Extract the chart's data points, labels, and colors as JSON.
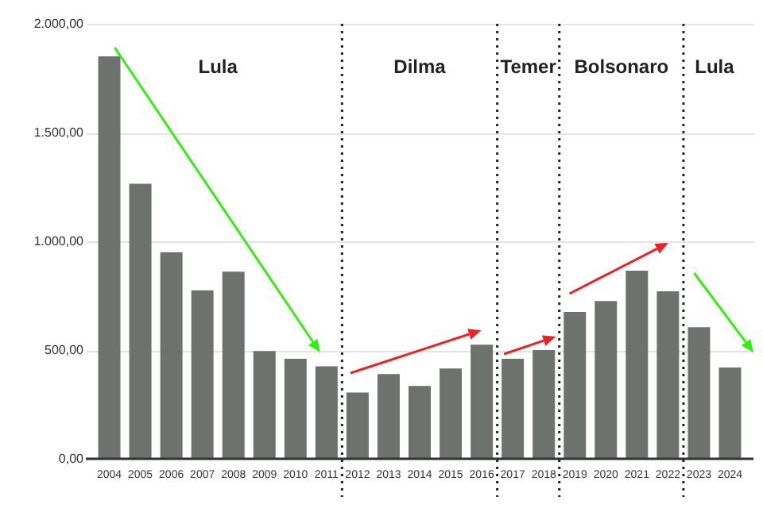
{
  "chart_data": {
    "type": "bar",
    "x": [
      2004,
      2005,
      2006,
      2007,
      2008,
      2009,
      2010,
      2011,
      2012,
      2013,
      2014,
      2015,
      2016,
      2017,
      2018,
      2019,
      2020,
      2021,
      2022,
      2023,
      2024
    ],
    "values": [
      1850,
      1265,
      950,
      775,
      860,
      495,
      460,
      425,
      305,
      390,
      335,
      415,
      525,
      460,
      500,
      675,
      725,
      865,
      770,
      605,
      420
    ],
    "color": "#6e726e",
    "xlim": [
      2003.5,
      2024.5
    ],
    "xticks": [
      2004,
      2005,
      2006,
      2007,
      2008,
      2009,
      2010,
      2011,
      2012,
      2013,
      2014,
      2015,
      2016,
      2017,
      2018,
      2019,
      2020,
      2021,
      2022,
      2023,
      2024
    ],
    "ylim": [
      0,
      2000
    ],
    "yticks": [
      {
        "value": 0,
        "label": "0,00"
      },
      {
        "value": 500,
        "label": "500,00"
      },
      {
        "value": 1000,
        "label": "1.000,00"
      },
      {
        "value": 1500,
        "label": "1.500,00"
      },
      {
        "value": 2000,
        "label": "2.000,00"
      }
    ],
    "grid": "y",
    "ref_lines": [
      {
        "axis": "x",
        "value": 2011.5,
        "line_style": "dotted"
      },
      {
        "axis": "x",
        "value": 2016.5,
        "line_style": "dotted"
      },
      {
        "axis": "x",
        "value": 2018.5,
        "line_style": "dotted"
      },
      {
        "axis": "x",
        "value": 2022.5,
        "line_style": "dotted"
      }
    ],
    "annotations": [
      "Lula",
      "Dilma",
      "Temer",
      "Bolsonaro",
      "Lula"
    ]
  }
}
